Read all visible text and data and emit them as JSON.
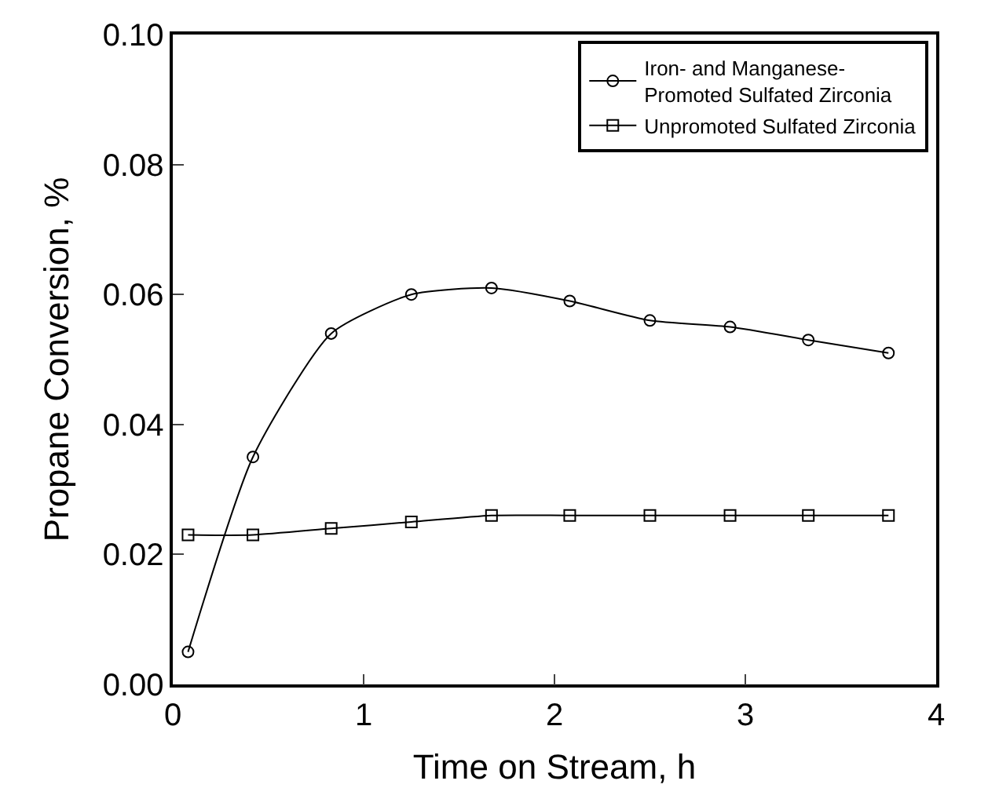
{
  "chart_data": {
    "type": "line",
    "xlabel": "Time on Stream, h",
    "ylabel": "Propane Conversion, %",
    "x": [
      0.08,
      0.42,
      0.83,
      1.25,
      1.67,
      2.08,
      2.5,
      2.92,
      3.33,
      3.75
    ],
    "series": [
      {
        "name": "Iron- and Manganese-\nPromoted Sulfated Zirconia",
        "color": "#000000",
        "marker": "circle",
        "line_style": "solid",
        "values": [
          0.005,
          0.035,
          0.054,
          0.06,
          0.061,
          0.059,
          0.056,
          0.055,
          0.053,
          0.051
        ]
      },
      {
        "name": "Unpromoted Sulfated Zirconia",
        "color": "#000000",
        "marker": "square",
        "line_style": "solid",
        "values": [
          0.023,
          0.023,
          0.024,
          0.025,
          0.026,
          0.026,
          0.026,
          0.026,
          0.026,
          0.026
        ]
      }
    ],
    "xlim": [
      0,
      4
    ],
    "xticks": [
      0,
      1,
      2,
      3,
      4
    ],
    "ylim": [
      0,
      0.1
    ],
    "yticks": [
      {
        "value": 0,
        "label": "0.00"
      },
      {
        "value": 0.02,
        "label": "0.02"
      },
      {
        "value": 0.04,
        "label": "0.04"
      },
      {
        "value": 0.06,
        "label": "0.06"
      },
      {
        "value": 0.08,
        "label": "0.08"
      },
      {
        "value": 0.1,
        "label": "0.10"
      }
    ],
    "legend": "top right"
  }
}
